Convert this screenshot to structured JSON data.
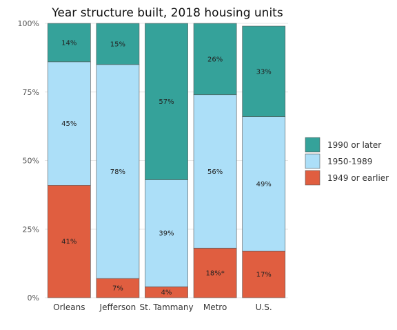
{
  "chart_data": {
    "type": "bar",
    "stacked": true,
    "title": "Year structure built, 2018 housing units",
    "xlabel": "",
    "ylabel": "",
    "categories": [
      "Orleans",
      "Jefferson",
      "St. Tammany",
      "Metro",
      "U.S."
    ],
    "ylim": [
      0,
      100
    ],
    "yticks": [
      "0%",
      "25%",
      "50%",
      "75%",
      "100%"
    ],
    "grid": true,
    "legend_position": "right",
    "series": [
      {
        "name": "1949 or earlier",
        "color": "#e05e40",
        "values": [
          41,
          7,
          4,
          18,
          17
        ],
        "labels": [
          "41%",
          "7%",
          "4%",
          "18%*",
          "17%"
        ]
      },
      {
        "name": "1950-1989",
        "color": "#acdff8",
        "values": [
          45,
          78,
          39,
          56,
          49
        ],
        "labels": [
          "45%",
          "78%",
          "39%",
          "56%",
          "49%"
        ]
      },
      {
        "name": "1990 or later",
        "color": "#35a29a",
        "values": [
          14,
          15,
          57,
          26,
          33
        ],
        "labels": [
          "14%",
          "15%",
          "57%",
          "26%",
          "33%"
        ]
      }
    ]
  }
}
